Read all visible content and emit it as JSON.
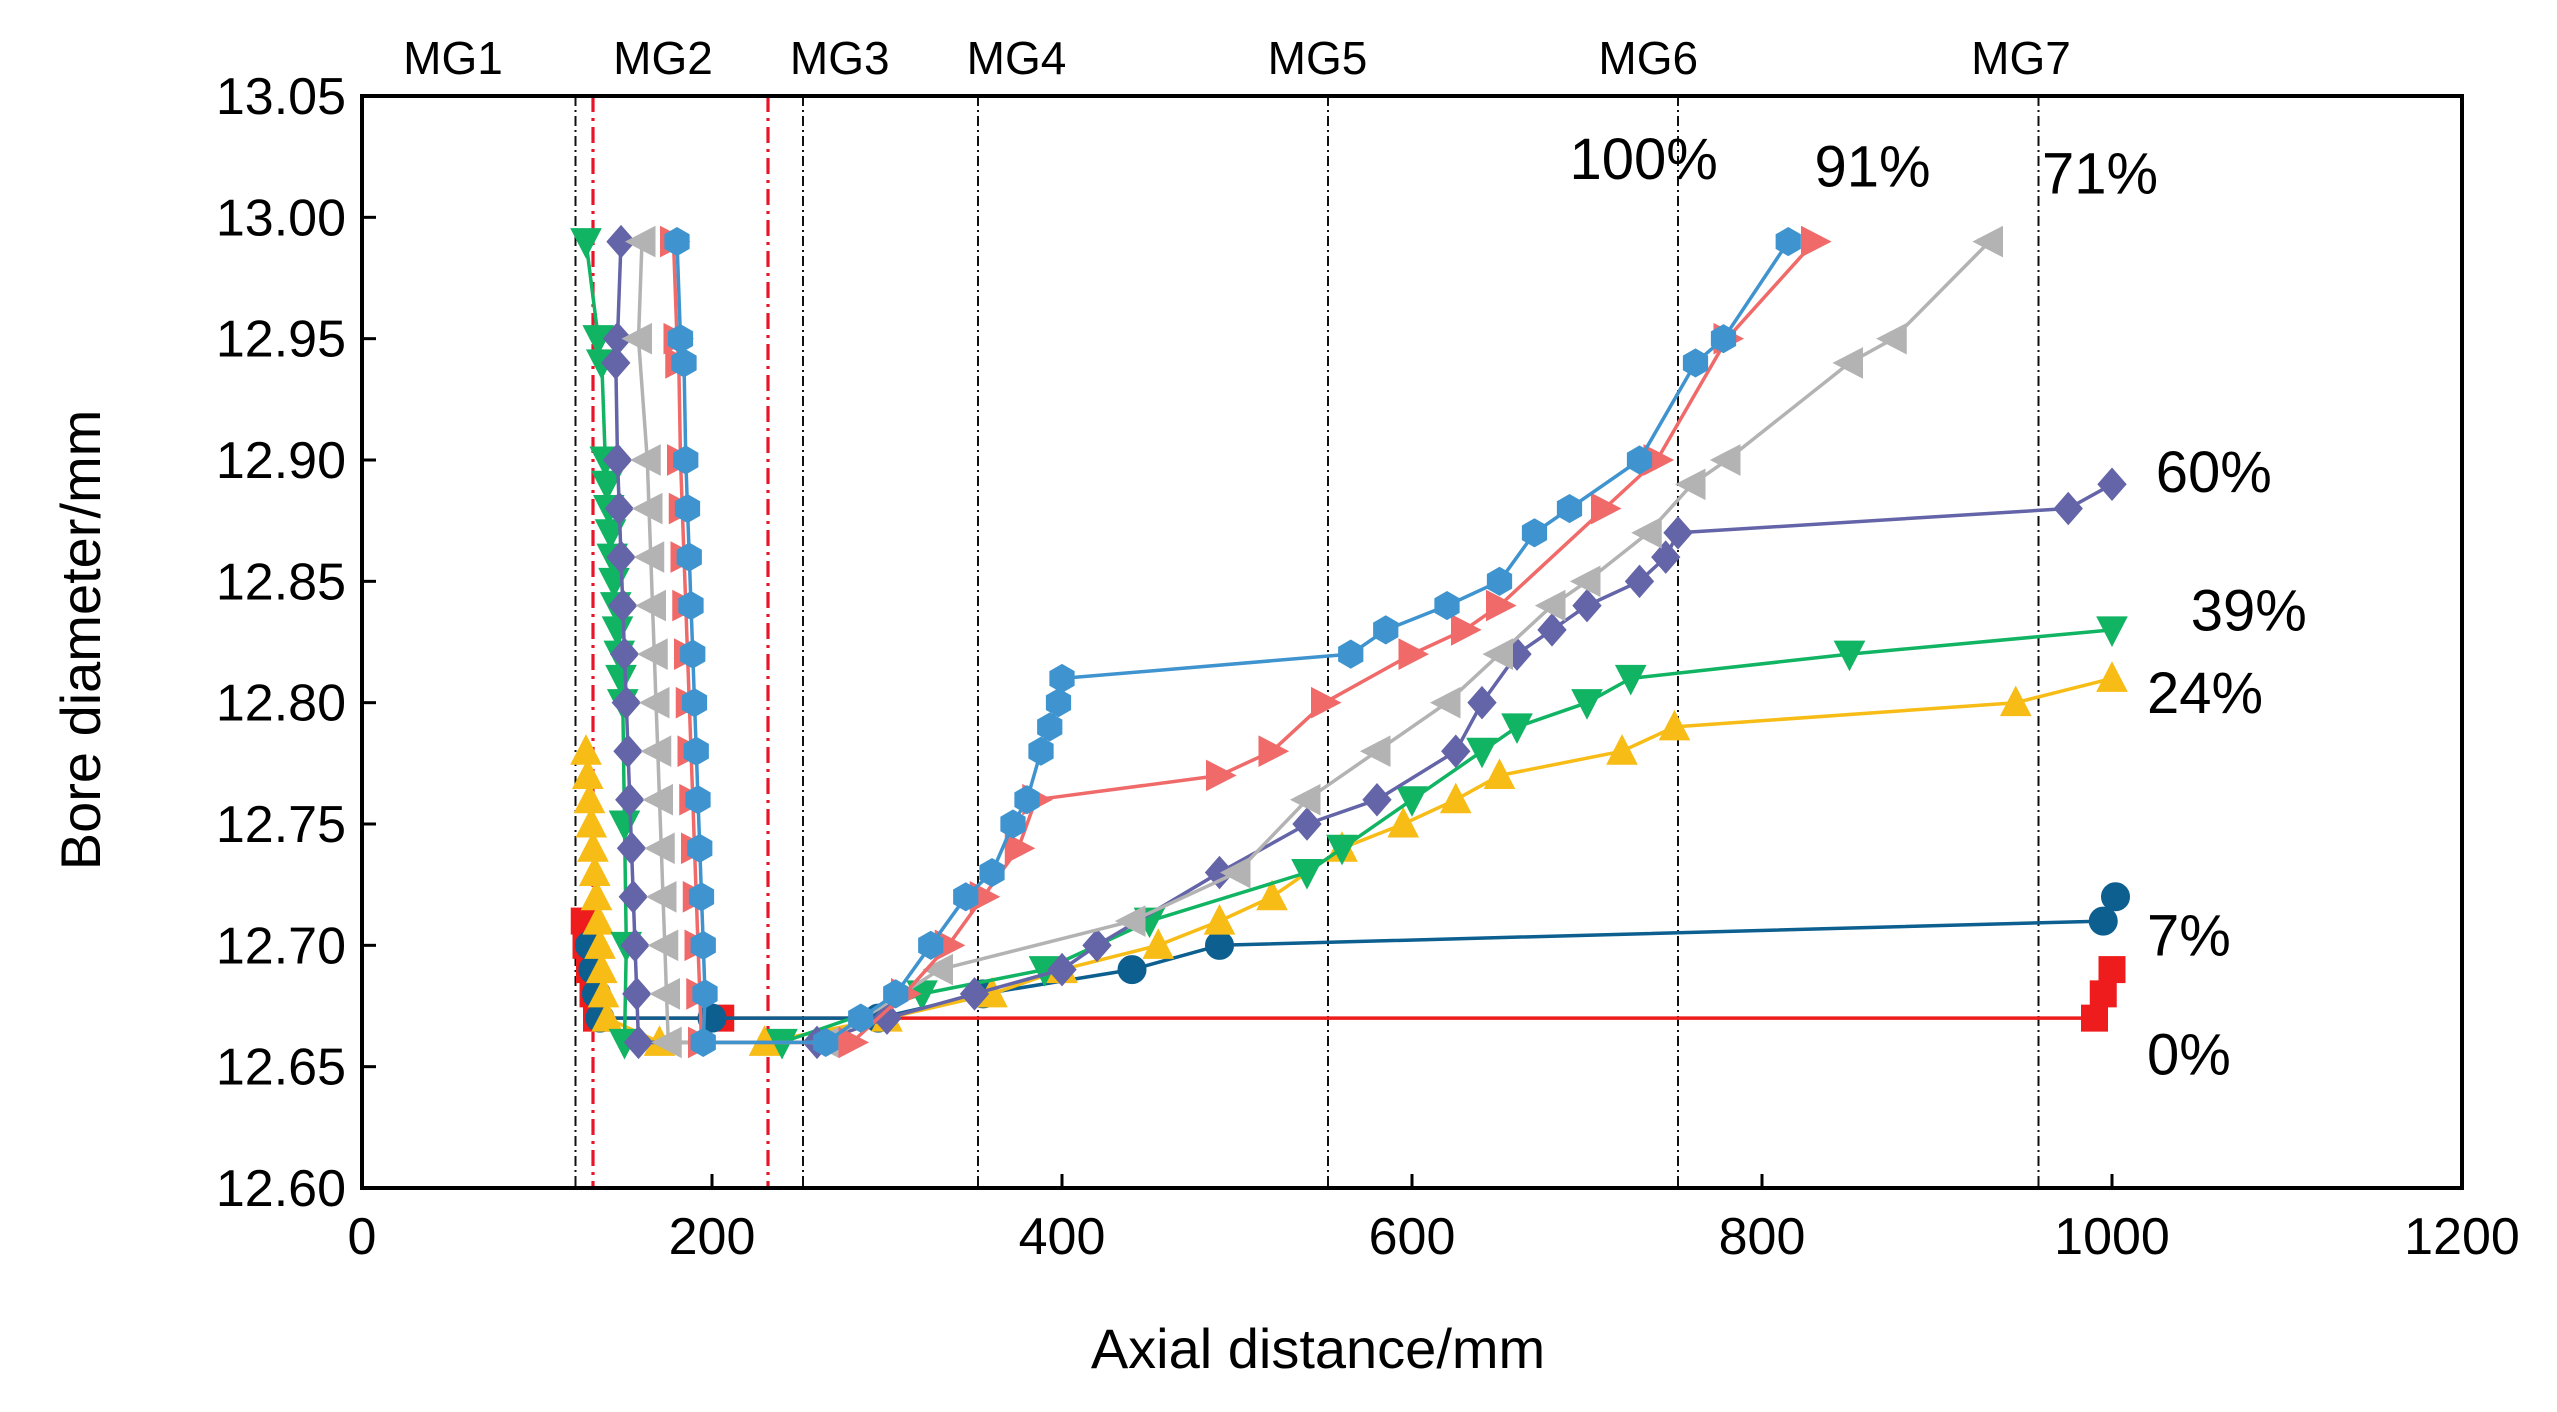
{
  "chart_data": {
    "type": "line",
    "title": "",
    "xlabel": "Axial distance/mm",
    "ylabel": "Bore diameter/mm",
    "xlim": [
      0,
      1200
    ],
    "ylim": [
      12.6,
      13.05
    ],
    "xticks": [
      0,
      200,
      400,
      600,
      800,
      1000,
      1200
    ],
    "xtick_labels": [
      "0",
      "200",
      "400",
      "600",
      "800",
      "1000",
      "1200"
    ],
    "yticks": [
      12.6,
      12.65,
      12.7,
      12.75,
      12.8,
      12.85,
      12.9,
      12.95,
      13.0,
      13.05
    ],
    "ytick_labels": [
      "12.60",
      "12.65",
      "12.70",
      "12.75",
      "12.80",
      "12.85",
      "12.90",
      "12.95",
      "13.00",
      "13.05"
    ],
    "grid": false,
    "reference_lines": [
      {
        "x": 122,
        "style": "black-dashdot"
      },
      {
        "x": 132,
        "style": "red-dashdot"
      },
      {
        "x": 232,
        "style": "red-dashdot"
      },
      {
        "x": 252,
        "style": "black-dashdot"
      },
      {
        "x": 352,
        "style": "black-dashdot"
      },
      {
        "x": 552,
        "style": "black-dashdot"
      },
      {
        "x": 752,
        "style": "black-dashdot"
      },
      {
        "x": 958,
        "style": "black-dashdot"
      }
    ],
    "zone_labels": [
      {
        "text": "MG1",
        "x": 52
      },
      {
        "text": "MG2",
        "x": 172
      },
      {
        "text": "MG3",
        "x": 273
      },
      {
        "text": "MG4",
        "x": 374
      },
      {
        "text": "MG5",
        "x": 546
      },
      {
        "text": "MG6",
        "x": 735
      },
      {
        "text": "MG7",
        "x": 948
      }
    ],
    "series": [
      {
        "name": "0%",
        "color": "#ee1c1c",
        "marker": "square",
        "label_pos": [
          1020,
          12.655
        ],
        "points": [
          [
            127,
            12.71
          ],
          [
            128,
            12.7
          ],
          [
            130,
            12.69
          ],
          [
            132,
            12.68
          ],
          [
            134,
            12.67
          ],
          [
            205,
            12.67
          ],
          [
            990,
            12.67
          ],
          [
            995,
            12.68
          ],
          [
            1000,
            12.69
          ]
        ]
      },
      {
        "name": "7%",
        "color": "#0c5f8f",
        "marker": "circle",
        "label_pos": [
          1020,
          12.704
        ],
        "points": [
          [
            130,
            12.7
          ],
          [
            132,
            12.69
          ],
          [
            134,
            12.68
          ],
          [
            136,
            12.67
          ],
          [
            200,
            12.67
          ],
          [
            295,
            12.67
          ],
          [
            355,
            12.68
          ],
          [
            440,
            12.69
          ],
          [
            490,
            12.7
          ],
          [
            995,
            12.71
          ],
          [
            1002,
            12.72
          ]
        ]
      },
      {
        "name": "24%",
        "color": "#f7bc16",
        "marker": "triangle-up",
        "label_pos": [
          1020,
          12.804
        ],
        "points": [
          [
            128,
            12.78
          ],
          [
            129,
            12.77
          ],
          [
            130,
            12.76
          ],
          [
            131,
            12.75
          ],
          [
            132,
            12.74
          ],
          [
            133,
            12.73
          ],
          [
            134,
            12.72
          ],
          [
            135,
            12.71
          ],
          [
            136,
            12.7
          ],
          [
            137,
            12.69
          ],
          [
            138,
            12.68
          ],
          [
            140,
            12.67
          ],
          [
            170,
            12.66
          ],
          [
            230,
            12.66
          ],
          [
            300,
            12.67
          ],
          [
            360,
            12.68
          ],
          [
            400,
            12.69
          ],
          [
            455,
            12.7
          ],
          [
            490,
            12.71
          ],
          [
            520,
            12.72
          ],
          [
            560,
            12.74
          ],
          [
            595,
            12.75
          ],
          [
            625,
            12.76
          ],
          [
            650,
            12.77
          ],
          [
            720,
            12.78
          ],
          [
            750,
            12.79
          ],
          [
            945,
            12.8
          ],
          [
            1000,
            12.81
          ]
        ]
      },
      {
        "name": "39%",
        "color": "#11b463",
        "marker": "triangle-down",
        "label_pos": [
          1045,
          12.838
        ],
        "points": [
          [
            128,
            12.99
          ],
          [
            135,
            12.95
          ],
          [
            137,
            12.94
          ],
          [
            139,
            12.9
          ],
          [
            140,
            12.89
          ],
          [
            141,
            12.88
          ],
          [
            142,
            12.87
          ],
          [
            143,
            12.86
          ],
          [
            144,
            12.85
          ],
          [
            145,
            12.84
          ],
          [
            146,
            12.83
          ],
          [
            147,
            12.82
          ],
          [
            148,
            12.81
          ],
          [
            149,
            12.8
          ],
          [
            150,
            12.75
          ],
          [
            151,
            12.7
          ],
          [
            150,
            12.66
          ],
          [
            240,
            12.66
          ],
          [
            320,
            12.68
          ],
          [
            390,
            12.69
          ],
          [
            450,
            12.71
          ],
          [
            540,
            12.73
          ],
          [
            560,
            12.74
          ],
          [
            600,
            12.76
          ],
          [
            640,
            12.78
          ],
          [
            660,
            12.79
          ],
          [
            700,
            12.8
          ],
          [
            725,
            12.81
          ],
          [
            850,
            12.82
          ],
          [
            1000,
            12.83
          ]
        ]
      },
      {
        "name": "60%",
        "color": "#6464a8",
        "marker": "diamond",
        "label_pos": [
          1025,
          12.895
        ],
        "points": [
          [
            148,
            12.99
          ],
          [
            146,
            12.95
          ],
          [
            145,
            12.94
          ],
          [
            146,
            12.9
          ],
          [
            147,
            12.88
          ],
          [
            148,
            12.86
          ],
          [
            149,
            12.84
          ],
          [
            150,
            12.82
          ],
          [
            151,
            12.8
          ],
          [
            152,
            12.78
          ],
          [
            153,
            12.76
          ],
          [
            154,
            12.74
          ],
          [
            155,
            12.72
          ],
          [
            156,
            12.7
          ],
          [
            157,
            12.68
          ],
          [
            158,
            12.66
          ],
          [
            260,
            12.66
          ],
          [
            300,
            12.67
          ],
          [
            350,
            12.68
          ],
          [
            400,
            12.69
          ],
          [
            420,
            12.7
          ],
          [
            490,
            12.73
          ],
          [
            540,
            12.75
          ],
          [
            580,
            12.76
          ],
          [
            625,
            12.78
          ],
          [
            640,
            12.8
          ],
          [
            660,
            12.82
          ],
          [
            680,
            12.83
          ],
          [
            700,
            12.84
          ],
          [
            730,
            12.85
          ],
          [
            745,
            12.86
          ],
          [
            752,
            12.87
          ],
          [
            975,
            12.88
          ],
          [
            1000,
            12.89
          ]
        ]
      },
      {
        "name": "71%",
        "color": "#b3b3b3",
        "marker": "triangle-left",
        "label_pos": [
          960,
          13.018
        ],
        "points": [
          [
            160,
            12.99
          ],
          [
            158,
            12.95
          ],
          [
            163,
            12.9
          ],
          [
            164,
            12.88
          ],
          [
            165,
            12.86
          ],
          [
            166,
            12.84
          ],
          [
            167,
            12.82
          ],
          [
            168,
            12.8
          ],
          [
            169,
            12.78
          ],
          [
            170,
            12.76
          ],
          [
            171,
            12.74
          ],
          [
            172,
            12.72
          ],
          [
            173,
            12.7
          ],
          [
            174,
            12.68
          ],
          [
            175,
            12.66
          ],
          [
            265,
            12.66
          ],
          [
            330,
            12.69
          ],
          [
            440,
            12.71
          ],
          [
            500,
            12.73
          ],
          [
            540,
            12.76
          ],
          [
            580,
            12.78
          ],
          [
            620,
            12.8
          ],
          [
            650,
            12.82
          ],
          [
            680,
            12.84
          ],
          [
            700,
            12.85
          ],
          [
            735,
            12.87
          ],
          [
            760,
            12.89
          ],
          [
            780,
            12.9
          ],
          [
            850,
            12.94
          ],
          [
            875,
            12.95
          ],
          [
            930,
            12.99
          ]
        ]
      },
      {
        "name": "91%",
        "color": "#f06a6a",
        "marker": "triangle-right",
        "label_pos": [
          830,
          13.021
        ],
        "points": [
          [
            178,
            12.99
          ],
          [
            180,
            12.95
          ],
          [
            181,
            12.94
          ],
          [
            182,
            12.9
          ],
          [
            183,
            12.88
          ],
          [
            184,
            12.86
          ],
          [
            185,
            12.84
          ],
          [
            186,
            12.82
          ],
          [
            187,
            12.8
          ],
          [
            188,
            12.78
          ],
          [
            189,
            12.76
          ],
          [
            190,
            12.74
          ],
          [
            191,
            12.72
          ],
          [
            192,
            12.7
          ],
          [
            193,
            12.68
          ],
          [
            194,
            12.66
          ],
          [
            280,
            12.66
          ],
          [
            310,
            12.68
          ],
          [
            335,
            12.7
          ],
          [
            355,
            12.72
          ],
          [
            375,
            12.74
          ],
          [
            385,
            12.76
          ],
          [
            490,
            12.77
          ],
          [
            520,
            12.78
          ],
          [
            550,
            12.8
          ],
          [
            600,
            12.82
          ],
          [
            630,
            12.83
          ],
          [
            650,
            12.84
          ],
          [
            710,
            12.88
          ],
          [
            740,
            12.9
          ],
          [
            780,
            12.95
          ],
          [
            830,
            12.99
          ]
        ]
      },
      {
        "name": "100%",
        "color": "#3f94cf",
        "marker": "hexagon",
        "label_pos": [
          690,
          13.024
        ],
        "points": [
          [
            180,
            12.99
          ],
          [
            182,
            12.95
          ],
          [
            184,
            12.94
          ],
          [
            185,
            12.9
          ],
          [
            186,
            12.88
          ],
          [
            187,
            12.86
          ],
          [
            188,
            12.84
          ],
          [
            189,
            12.82
          ],
          [
            190,
            12.8
          ],
          [
            191,
            12.78
          ],
          [
            192,
            12.76
          ],
          [
            193,
            12.74
          ],
          [
            194,
            12.72
          ],
          [
            195,
            12.7
          ],
          [
            196,
            12.68
          ],
          [
            195,
            12.66
          ],
          [
            265,
            12.66
          ],
          [
            285,
            12.67
          ],
          [
            305,
            12.68
          ],
          [
            325,
            12.7
          ],
          [
            345,
            12.72
          ],
          [
            360,
            12.73
          ],
          [
            372,
            12.75
          ],
          [
            380,
            12.76
          ],
          [
            388,
            12.78
          ],
          [
            393,
            12.79
          ],
          [
            398,
            12.8
          ],
          [
            400,
            12.81
          ],
          [
            565,
            12.82
          ],
          [
            585,
            12.83
          ],
          [
            620,
            12.84
          ],
          [
            650,
            12.85
          ],
          [
            670,
            12.87
          ],
          [
            690,
            12.88
          ],
          [
            730,
            12.9
          ],
          [
            762,
            12.94
          ],
          [
            778,
            12.95
          ],
          [
            815,
            12.99
          ]
        ]
      }
    ]
  }
}
